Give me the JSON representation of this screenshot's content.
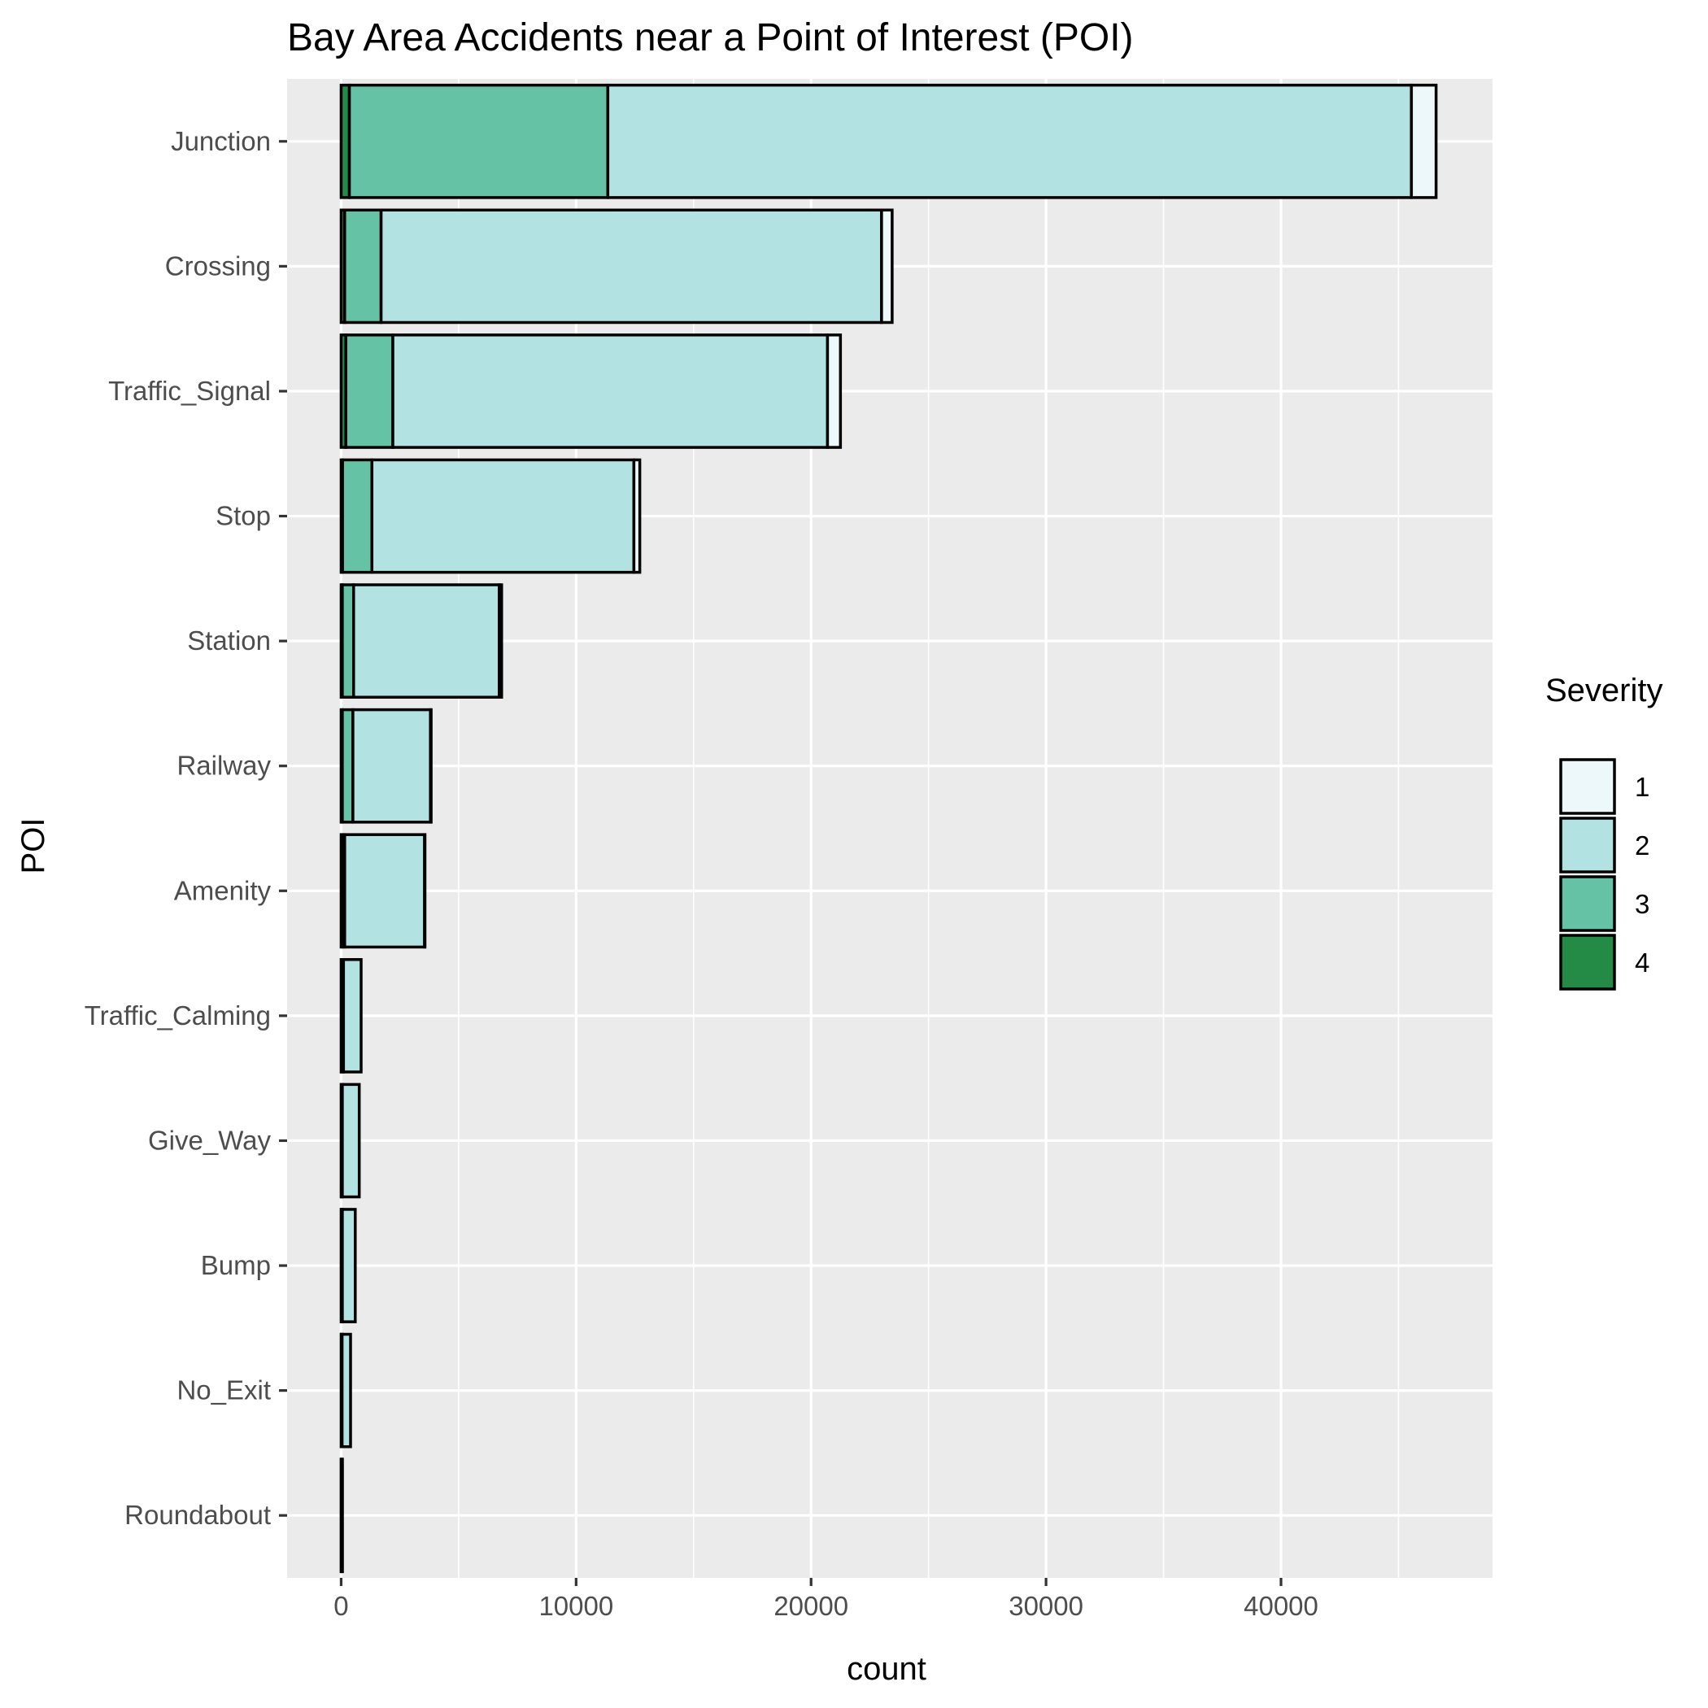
{
  "chart_data": {
    "type": "bar",
    "orientation": "horizontal",
    "stacked": true,
    "title": "Bay Area Accidents near a Point of Interest (POI)",
    "xlabel": "count",
    "ylabel": "POI",
    "xlim": [
      -2300,
      49000
    ],
    "x_ticks": [
      0,
      10000,
      20000,
      30000,
      40000
    ],
    "x_tick_labels": [
      "0",
      "10000",
      "20000",
      "30000",
      "40000"
    ],
    "grid": true,
    "categories": [
      "Junction",
      "Crossing",
      "Traffic_Signal",
      "Stop",
      "Station",
      "Railway",
      "Amenity",
      "Traffic_Calming",
      "Give_Way",
      "Bump",
      "No_Exit",
      "Roundabout"
    ],
    "series": [
      {
        "name": "4",
        "color": "#238b45",
        "values": [
          350,
          150,
          200,
          60,
          50,
          50,
          30,
          20,
          10,
          10,
          10,
          5
        ]
      },
      {
        "name": "3",
        "color": "#66c2a4",
        "values": [
          11000,
          1550,
          2000,
          1250,
          480,
          450,
          120,
          80,
          40,
          40,
          30,
          10
        ]
      },
      {
        "name": "2",
        "color": "#b2e2e2",
        "values": [
          34200,
          21300,
          18500,
          11150,
          6200,
          3300,
          3400,
          750,
          720,
          550,
          360,
          40
        ]
      },
      {
        "name": "1",
        "color": "#edf8fb",
        "values": [
          1050,
          450,
          550,
          250,
          100,
          30,
          10,
          0,
          0,
          0,
          0,
          0
        ]
      }
    ],
    "legend": {
      "title": "Severity",
      "position": "right",
      "items": [
        "1",
        "2",
        "3",
        "4"
      ]
    },
    "colors": {
      "panel_background": "#ebebeb",
      "grid": "#ffffff",
      "bar_outline": "#000000"
    }
  }
}
